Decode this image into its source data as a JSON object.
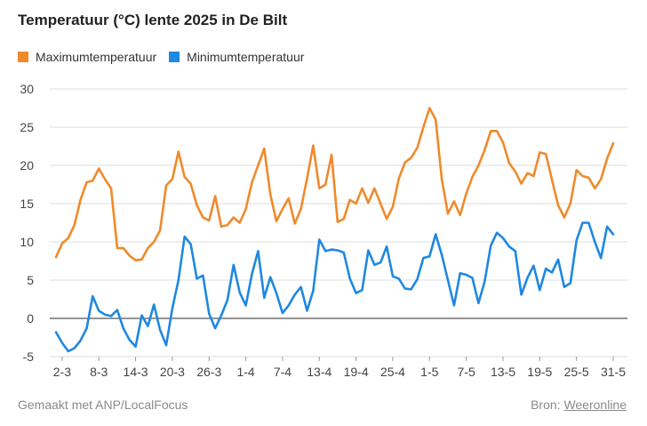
{
  "title": "Temperatuur (°C) lente 2025 in De Bilt",
  "footer": {
    "credit": "Gemaakt met ANP/LocalFocus",
    "source_label": "Bron:",
    "source_name": "Weeronline"
  },
  "colors": {
    "max": "#ef8a2c",
    "min": "#1f88e0",
    "grid": "#dddddd",
    "zero": "#555555"
  },
  "chart_data": {
    "type": "line",
    "title": "Temperatuur (°C) lente 2025 in De Bilt",
    "xlabel": "",
    "ylabel": "",
    "ylim": [
      -5,
      30
    ],
    "yticks": [
      -5,
      0,
      5,
      10,
      15,
      20,
      25,
      30
    ],
    "grid": true,
    "legend": "top-left",
    "x_start": "1-3",
    "xtick_labels": [
      {
        "day": 1,
        "label": "2-3"
      },
      {
        "day": 7,
        "label": "8-3"
      },
      {
        "day": 13,
        "label": "14-3"
      },
      {
        "day": 19,
        "label": "20-3"
      },
      {
        "day": 25,
        "label": "26-3"
      },
      {
        "day": 31,
        "label": "1-4"
      },
      {
        "day": 37,
        "label": "7-4"
      },
      {
        "day": 43,
        "label": "13-4"
      },
      {
        "day": 49,
        "label": "19-4"
      },
      {
        "day": 55,
        "label": "25-4"
      },
      {
        "day": 61,
        "label": "1-5"
      },
      {
        "day": 67,
        "label": "7-5"
      },
      {
        "day": 73,
        "label": "13-5"
      },
      {
        "day": 79,
        "label": "19-5"
      },
      {
        "day": 85,
        "label": "25-5"
      },
      {
        "day": 91,
        "label": "31-5"
      }
    ],
    "series": [
      {
        "name": "Maximumtemperatuur",
        "color": "#ef8a2c",
        "values": [
          8.0,
          9.8,
          10.5,
          12.2,
          15.5,
          17.8,
          18.0,
          19.6,
          18.2,
          17.0,
          9.2,
          9.2,
          8.2,
          7.6,
          7.7,
          9.2,
          10.0,
          11.5,
          17.4,
          18.2,
          21.8,
          18.5,
          17.6,
          14.8,
          13.2,
          12.8,
          16.0,
          12.0,
          12.2,
          13.2,
          12.5,
          14.3,
          17.8,
          20.0,
          22.2,
          16.2,
          12.7,
          14.3,
          15.7,
          12.4,
          14.3,
          18.3,
          22.6,
          17.0,
          17.5,
          21.4,
          12.6,
          13.0,
          15.5,
          15.0,
          17.0,
          15.1,
          17.0,
          15.0,
          13.0,
          14.6,
          18.3,
          20.4,
          21.0,
          22.3,
          25.0,
          27.5,
          26.0,
          18.2,
          13.7,
          15.3,
          13.5,
          16.3,
          18.5,
          20.0,
          22.0,
          24.5,
          24.5,
          23.0,
          20.3,
          19.2,
          17.6,
          19.0,
          18.6,
          21.7,
          21.5,
          18.1,
          14.8,
          13.2,
          15.0,
          19.4,
          18.6,
          18.4,
          17.0,
          18.2,
          20.9,
          22.9
        ]
      },
      {
        "name": "Minimumtemperatuur",
        "color": "#1f88e0",
        "values": [
          -1.8,
          -3.2,
          -4.3,
          -3.9,
          -2.9,
          -1.3,
          2.9,
          1.0,
          0.5,
          0.3,
          1.1,
          -1.3,
          -2.8,
          -3.7,
          0.4,
          -1.0,
          1.8,
          -1.5,
          -3.5,
          1.3,
          5.0,
          10.7,
          9.7,
          5.2,
          5.6,
          0.6,
          -1.3,
          0.4,
          2.4,
          7.0,
          3.4,
          1.7,
          5.8,
          8.8,
          2.7,
          5.4,
          3.3,
          0.7,
          1.7,
          3.1,
          4.1,
          1.0,
          3.6,
          10.3,
          8.8,
          9.0,
          8.9,
          8.6,
          5.2,
          3.3,
          3.7,
          8.9,
          7.0,
          7.3,
          9.4,
          5.5,
          5.2,
          3.9,
          3.8,
          5.1,
          7.9,
          8.1,
          11.0,
          8.3,
          5.0,
          1.7,
          5.9,
          5.7,
          5.3,
          2.0,
          4.8,
          9.5,
          11.2,
          10.5,
          9.4,
          8.8,
          3.1,
          5.3,
          6.9,
          3.7,
          6.5,
          6.0,
          7.7,
          4.1,
          4.6,
          10.2,
          12.5,
          12.5,
          10.0,
          7.9,
          12.0,
          11.0
        ]
      }
    ]
  }
}
